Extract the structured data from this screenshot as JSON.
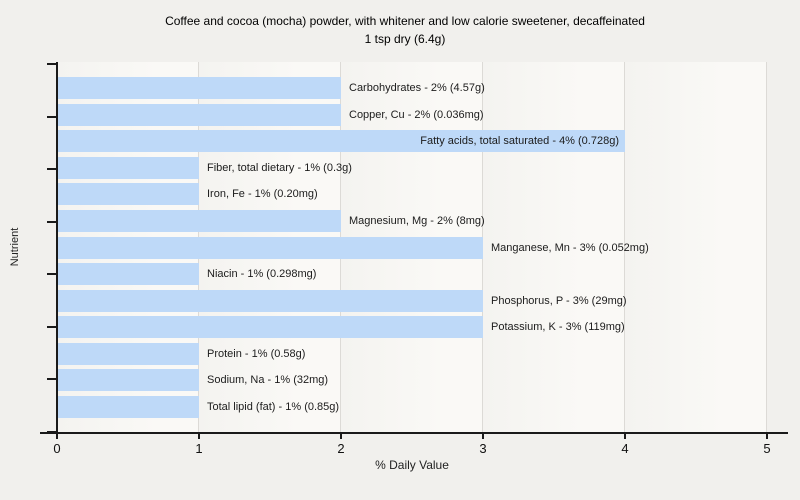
{
  "figure": {
    "title_line1": "Coffee and cocoa (mocha) powder, with whitener and low calorie sweetener, decaffeinated",
    "title_line2": "1 tsp dry (6.4g)",
    "xlabel": "% Daily Value",
    "ylabel": "Nutrient"
  },
  "colors": {
    "bar": "#bed9f8",
    "page_bg": "#f1f0ed",
    "grid": "#dcdad6",
    "axis": "#1a1a1a",
    "label_text": "#1c1c1c"
  },
  "chart_data": {
    "type": "bar",
    "orientation": "horizontal",
    "title": "Coffee and cocoa (mocha) powder, with whitener and low calorie sweetener, decaffeinated",
    "subtitle": "1 tsp dry (6.4g)",
    "xlabel": "% Daily Value",
    "ylabel": "Nutrient",
    "xlim": [
      0,
      5
    ],
    "x_ticks": [
      0,
      1,
      2,
      3,
      4,
      5
    ],
    "grid": true,
    "categories": [
      "Carbohydrates",
      "Copper, Cu",
      "Fatty acids, total saturated",
      "Fiber, total dietary",
      "Iron, Fe",
      "Magnesium, Mg",
      "Manganese, Mn",
      "Niacin",
      "Phosphorus, P",
      "Potassium, K",
      "Protein",
      "Sodium, Na",
      "Total lipid (fat)"
    ],
    "values": [
      2,
      2,
      4,
      1,
      1,
      2,
      3,
      1,
      3,
      3,
      1,
      1,
      1
    ],
    "bar_labels": [
      "Carbohydrates - 2% (4.57g)",
      "Copper, Cu - 2% (0.036mg)",
      "Fatty acids, total saturated - 4% (0.728g)",
      "Fiber, total dietary - 1% (0.3g)",
      "Iron, Fe - 1% (0.20mg)",
      "Magnesium, Mg - 2% (8mg)",
      "Manganese, Mn - 3% (0.052mg)",
      "Niacin - 1% (0.298mg)",
      "Phosphorus, P - 3% (29mg)",
      "Potassium, K - 3% (119mg)",
      "Protein - 1% (0.58g)",
      "Sodium, Na - 1% (32mg)",
      "Total lipid (fat) - 1% (0.85g)"
    ],
    "label_inside": [
      false,
      false,
      true,
      false,
      false,
      false,
      false,
      false,
      false,
      false,
      false,
      false,
      false
    ]
  }
}
